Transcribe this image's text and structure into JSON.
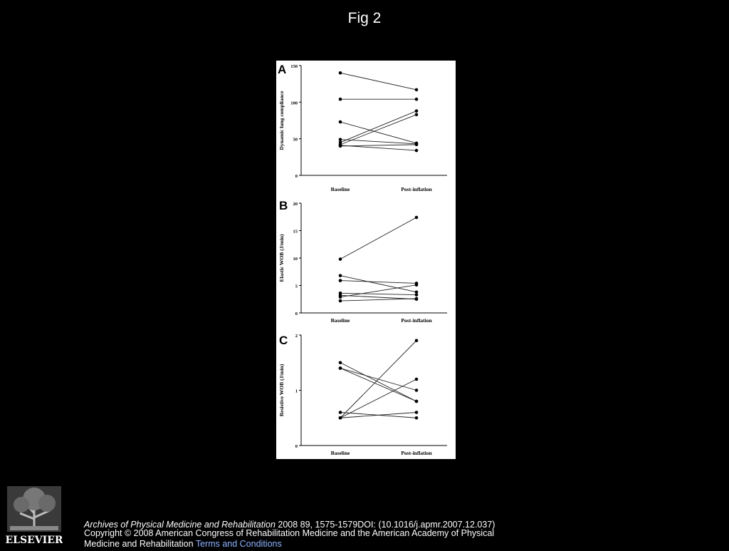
{
  "slide": {
    "title": "Fig 2"
  },
  "citation": {
    "journal": "Archives of Physical Medicine and Rehabilitation",
    "details": " 2008 89, 1575-1579DOI: (10.1016/j.apmr.2007.12.037)"
  },
  "copyright": {
    "text": "Copyright © 2008 American Congress of Rehabilitation Medicine and the American Academy of Physical Medicine and Rehabilitation ",
    "terms_link": "Terms and Conditions"
  },
  "logo": {
    "text": "ELSEVIER",
    "icon": "elsevier-tree-icon"
  },
  "colors": {
    "background": "#000000",
    "panel": "#ffffff",
    "ink": "#000000",
    "link": "#8fb3ff"
  },
  "chart_data": [
    {
      "type": "line",
      "panel_label": "A",
      "ylabel": "Dynamic lung compliance",
      "categories": [
        "Baseline",
        "Post-inflation"
      ],
      "ylim": [
        0,
        150
      ],
      "yticks": [
        0,
        50,
        100,
        150
      ],
      "grid": false,
      "series": [
        {
          "values": [
            140,
            117
          ]
        },
        {
          "values": [
            104,
            104
          ]
        },
        {
          "values": [
            73,
            44
          ]
        },
        {
          "values": [
            49,
            43
          ]
        },
        {
          "values": [
            45,
            88
          ]
        },
        {
          "values": [
            42,
            83
          ]
        },
        {
          "values": [
            41,
            34
          ]
        },
        {
          "values": [
            40,
            42
          ]
        }
      ]
    },
    {
      "type": "line",
      "panel_label": "B",
      "ylabel": "Elastic WOB (J/min)",
      "categories": [
        "Baseline",
        "Post-inflation"
      ],
      "ylim": [
        0,
        20
      ],
      "yticks": [
        0,
        5,
        10,
        15,
        20
      ],
      "grid": false,
      "series": [
        {
          "values": [
            9.8,
            17.4
          ]
        },
        {
          "values": [
            6.8,
            3.8
          ]
        },
        {
          "values": [
            5.9,
            5.4
          ]
        },
        {
          "values": [
            3.6,
            3.3
          ]
        },
        {
          "values": [
            3.2,
            2.5
          ]
        },
        {
          "values": [
            2.9,
            5.1
          ]
        },
        {
          "values": [
            2.2,
            2.6
          ]
        }
      ]
    },
    {
      "type": "line",
      "panel_label": "C",
      "ylabel": "Resistive WOB (J/min)",
      "categories": [
        "Baseline",
        "Post-inflation"
      ],
      "ylim": [
        0,
        2
      ],
      "yticks": [
        0,
        1,
        2
      ],
      "grid": false,
      "series": [
        {
          "values": [
            1.5,
            0.8
          ]
        },
        {
          "values": [
            1.4,
            1.0
          ]
        },
        {
          "values": [
            1.4,
            0.8
          ]
        },
        {
          "values": [
            0.6,
            0.5
          ]
        },
        {
          "values": [
            0.5,
            1.9
          ]
        },
        {
          "values": [
            0.5,
            1.2
          ]
        },
        {
          "values": [
            0.5,
            0.6
          ]
        }
      ]
    }
  ]
}
